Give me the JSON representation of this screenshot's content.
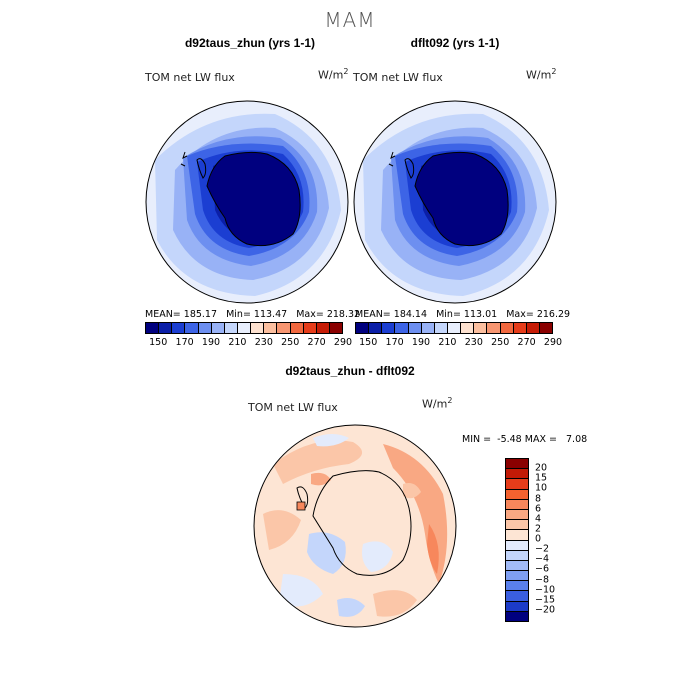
{
  "season": "MAM",
  "panels": [
    {
      "title": "d92taus_zhun (yrs 1-1)",
      "variable": "TOM net LW flux",
      "units_base": "W/m",
      "units_exp": "2",
      "stats": "MEAN= 185.17   Min= 113.47   Max= 218.32"
    },
    {
      "title": "dflt092 (yrs 1-1)",
      "variable": "TOM net LW flux",
      "units_base": "W/m",
      "units_exp": "2",
      "stats": "MEAN= 184.14   Min= 113.01   Max= 216.29"
    }
  ],
  "abs_colorbar": {
    "colors": [
      "#00007f",
      "#0b1fa8",
      "#1b3ed2",
      "#3d64e6",
      "#6d8ff0",
      "#98b2f6",
      "#c4d6fb",
      "#e8eefc",
      "#fde1cf",
      "#fbbf9f",
      "#f79671",
      "#f1683f",
      "#e63c1a",
      "#c61c06",
      "#8a0000"
    ],
    "ticks": [
      "150",
      "170",
      "190",
      "210",
      "230",
      "250",
      "270",
      "290"
    ]
  },
  "diff_panel": {
    "title": "d92taus_zhun - dflt092",
    "variable": "TOM net LW flux",
    "units_base": "W/m",
    "units_exp": "2",
    "min_label": "MIN =",
    "min_value": "-5.48",
    "max_label": "MAX =",
    "max_value": "7.08"
  },
  "diff_colorbar": {
    "colors_top_to_bottom": [
      "#8a0000",
      "#c21a06",
      "#e63c1a",
      "#f4622f",
      "#f7875c",
      "#f9a883",
      "#fbc6a8",
      "#fde5d4",
      "#e3ebfc",
      "#c4d6fb",
      "#a2bbf7",
      "#7f9ff2",
      "#5a80ec",
      "#3a5ee0",
      "#1c3bc8",
      "#00007f"
    ],
    "ticks": [
      "20",
      "15",
      "10",
      "8",
      "6",
      "4",
      "2",
      "0",
      "−2",
      "−4",
      "−6",
      "−8",
      "−10",
      "−15",
      "−20"
    ]
  },
  "icons": [
    "south-polar-map",
    "antarctica-coastline"
  ]
}
